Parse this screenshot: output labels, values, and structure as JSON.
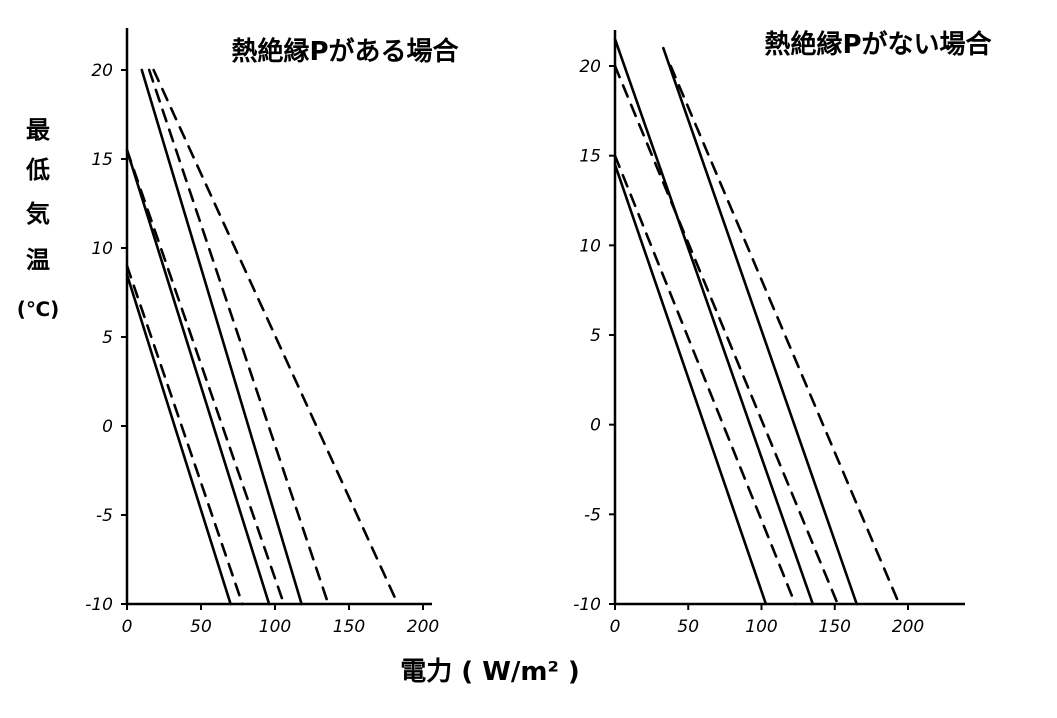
{
  "ylabel_chars": [
    "最",
    "低",
    "気",
    "温",
    "(℃)"
  ],
  "xlabel": "電力 ( W/m² )",
  "chart_data": [
    {
      "type": "line",
      "title": "熱絶縁Pがある場合",
      "xlim": [
        0,
        200
      ],
      "ylim": [
        -10,
        20
      ],
      "xticks": [
        "0",
        "50",
        "100",
        "150",
        "200"
      ],
      "yticks": [
        "-10",
        "-5",
        "0",
        "5",
        "10",
        "15",
        "20"
      ],
      "series": [
        {
          "style": "solid",
          "points": [
            [
              0,
              8.5
            ],
            [
              70,
              -10
            ]
          ]
        },
        {
          "style": "dashed",
          "points": [
            [
              0,
              9
            ],
            [
              78,
              -10
            ]
          ]
        },
        {
          "style": "solid",
          "points": [
            [
              0,
              15.5
            ],
            [
              96,
              -10
            ]
          ]
        },
        {
          "style": "dashed",
          "points": [
            [
              0,
              15.5
            ],
            [
              106,
              -10
            ]
          ]
        },
        {
          "style": "solid",
          "points": [
            [
              10,
              20
            ],
            [
              118,
              -10
            ]
          ]
        },
        {
          "style": "dashed",
          "points": [
            [
              15,
              20
            ],
            [
              136,
              -10
            ]
          ]
        },
        {
          "style": "dashed",
          "points": [
            [
              18,
              20
            ],
            [
              183,
              -10
            ]
          ]
        }
      ]
    },
    {
      "type": "line",
      "title": "熱絶縁Pがない場合",
      "xlim": [
        0,
        200
      ],
      "ylim": [
        -10,
        20
      ],
      "xticks": [
        "0",
        "50",
        "100",
        "150",
        "200"
      ],
      "yticks": [
        "-10",
        "-5",
        "0",
        "5",
        "10",
        "15",
        "20"
      ],
      "series": [
        {
          "style": "solid",
          "points": [
            [
              0,
              14.5
            ],
            [
              103,
              -10
            ]
          ]
        },
        {
          "style": "dashed",
          "points": [
            [
              0,
              15
            ],
            [
              123,
              -10
            ]
          ]
        },
        {
          "style": "solid",
          "points": [
            [
              0,
              21.5
            ],
            [
              135,
              -10
            ]
          ]
        },
        {
          "style": "dashed",
          "points": [
            [
              0,
              20
            ],
            [
              152,
              -10
            ]
          ]
        },
        {
          "style": "solid",
          "points": [
            [
              33,
              21
            ],
            [
              165,
              -10
            ]
          ]
        },
        {
          "style": "dashed",
          "points": [
            [
              38,
              20
            ],
            [
              194,
              -10
            ]
          ]
        }
      ]
    }
  ]
}
